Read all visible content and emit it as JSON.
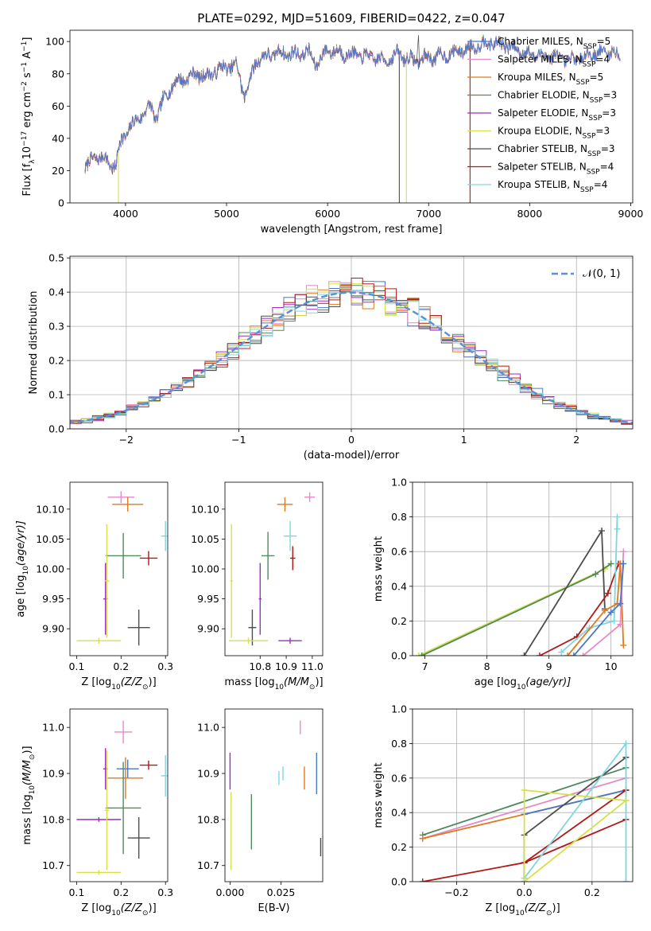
{
  "colors": {
    "chabrier_miles": "#4a78c8",
    "salpeter_miles": "#e58ac8",
    "kroupa_miles": "#e07a1f",
    "chabrier_elodie": "#4f8a5e",
    "salpeter_elodie": "#9b2fc0",
    "kroupa_elodie": "#d7e04a",
    "chabrier_stelib": "#4d4d4d",
    "salpeter_stelib": "#b11818",
    "kroupa_stelib": "#7fd6de",
    "gaussian": "#5b8fd8",
    "grid": "#b0b0b0"
  },
  "chart_data": [
    {
      "id": "spectrum",
      "type": "line",
      "title": "PLATE=0292, MJD=51609, FIBERID=0422, z=0.047",
      "xlabel": "wavelength [Angstrom, rest frame]",
      "ylabel": "Flux [f$_\\lambda$10$^{-17}$ erg cm$^{-2}$ s$^{-1}$ A$^{-1}$]",
      "ylabel_parts": [
        "Flux [f",
        "λ",
        "10",
        "−17",
        " erg cm",
        "−2",
        " s",
        "−1",
        " A",
        "−1",
        "]"
      ],
      "xlim": [
        3450,
        9020
      ],
      "ylim": [
        0,
        107
      ],
      "xticks": [
        4000,
        5000,
        6000,
        7000,
        8000,
        9000
      ],
      "yticks": [
        0,
        20,
        40,
        60,
        80,
        100
      ],
      "grid": false,
      "legend_position": "top-right",
      "legend": [
        {
          "label": "Chabrier MILES, N",
          "sub": "SSP",
          "n": "=5",
          "color_key": "chabrier_miles"
        },
        {
          "label": "Salpeter MILES, N",
          "sub": "SSP",
          "n": "=4",
          "color_key": "salpeter_miles"
        },
        {
          "label": "Kroupa MILES, N",
          "sub": "SSP",
          "n": "=5",
          "color_key": "kroupa_miles"
        },
        {
          "label": "Chabrier ELODIE, N",
          "sub": "SSP",
          "n": "=3",
          "color_key": "chabrier_elodie"
        },
        {
          "label": "Salpeter ELODIE, N",
          "sub": "SSP",
          "n": "=3",
          "color_key": "salpeter_elodie"
        },
        {
          "label": "Kroupa ELODIE, N",
          "sub": "SSP",
          "n": "=3",
          "color_key": "kroupa_elodie"
        },
        {
          "label": "Chabrier STELIB, N",
          "sub": "SSP",
          "n": "=3",
          "color_key": "chabrier_stelib"
        },
        {
          "label": "Salpeter STELIB, N",
          "sub": "SSP",
          "n": "=4",
          "color_key": "salpeter_stelib"
        },
        {
          "label": "Kroupa STELIB, N",
          "sub": "SSP",
          "n": "=4",
          "color_key": "kroupa_stelib"
        }
      ],
      "continuum": [
        [
          3600,
          22
        ],
        [
          3700,
          29
        ],
        [
          3800,
          27
        ],
        [
          3900,
          22
        ],
        [
          3950,
          38
        ],
        [
          4050,
          47
        ],
        [
          4150,
          54
        ],
        [
          4250,
          60
        ],
        [
          4300,
          52
        ],
        [
          4400,
          67
        ],
        [
          4500,
          75
        ],
        [
          4600,
          77
        ],
        [
          4700,
          80
        ],
        [
          4800,
          78
        ],
        [
          4900,
          82
        ],
        [
          5000,
          84
        ],
        [
          5100,
          85
        ],
        [
          5180,
          66
        ],
        [
          5300,
          89
        ],
        [
          5500,
          93
        ],
        [
          5700,
          92
        ],
        [
          5800,
          94
        ],
        [
          5890,
          86
        ],
        [
          6000,
          95
        ],
        [
          6200,
          92
        ],
        [
          6400,
          91
        ],
        [
          6560,
          88
        ],
        [
          6700,
          92
        ],
        [
          6850,
          88
        ],
        [
          7000,
          90
        ],
        [
          7200,
          92
        ],
        [
          7400,
          96
        ],
        [
          7600,
          100
        ],
        [
          7800,
          97
        ],
        [
          8000,
          92
        ],
        [
          8200,
          91
        ],
        [
          8400,
          88
        ],
        [
          8600,
          92
        ],
        [
          8800,
          94
        ],
        [
          8900,
          90
        ]
      ],
      "dropouts": [
        {
          "color_key": "kroupa_elodie",
          "x": 3930,
          "to": 0
        },
        {
          "color_key": "chabrier_stelib",
          "x": 6710,
          "to": 0
        },
        {
          "color_key": "kroupa_elodie",
          "x": 6780,
          "to": 0
        },
        {
          "color_key": "salpeter_stelib",
          "x": 7410,
          "to": 0
        }
      ]
    },
    {
      "id": "residual-histogram",
      "type": "histogram",
      "xlabel": "(data-model)/error",
      "ylabel": "Normed distribution",
      "xlim": [
        -2.5,
        2.5
      ],
      "ylim": [
        0,
        0.505
      ],
      "xticks": [
        -2,
        -1,
        0,
        1,
        2
      ],
      "yticks": [
        0.0,
        0.1,
        0.2,
        0.3,
        0.4,
        0.5
      ],
      "grid": true,
      "legend_position": "top-right",
      "legend_label": "𝒩(0, 1)",
      "bin_width": 0.1,
      "bin_start": -2.6
    },
    {
      "id": "age-vs-Z",
      "type": "scatter",
      "xlabel": "Z [log",
      "xlabel_sub": "10",
      "xlabel_tail": "(Z/Z",
      "xlabel_end": ")]",
      "ylabel": "age  [log",
      "ylabel_sub": "10",
      "ylabel_tail": "(age/yr)]",
      "xlim": [
        0.085,
        0.305
      ],
      "ylim": [
        9.855,
        10.145
      ],
      "xticks": [
        0.1,
        0.2,
        0.3
      ],
      "yticks": [
        9.9,
        9.95,
        10.0,
        10.05,
        10.1
      ],
      "points": [
        {
          "color_key": "salpeter_miles",
          "x": 0.2,
          "y": 10.12,
          "xerr": 0.03,
          "yerr": 0.01
        },
        {
          "color_key": "kroupa_miles",
          "x": 0.215,
          "y": 10.108,
          "xerr": 0.035,
          "yerr": 0.012
        },
        {
          "color_key": "kroupa_stelib",
          "x": 0.3,
          "y": 10.055,
          "xerr": 0.01,
          "yerr": 0.025
        },
        {
          "color_key": "chabrier_elodie",
          "x": 0.205,
          "y": 10.022,
          "xerr": 0.04,
          "yerr": 0.038
        },
        {
          "color_key": "salpeter_stelib",
          "x": 0.262,
          "y": 10.018,
          "xerr": 0.02,
          "yerr": 0.012
        },
        {
          "color_key": "salpeter_elodie",
          "x": 0.165,
          "y": 9.95,
          "xerr": 0.005,
          "yerr": 0.06
        },
        {
          "color_key": "kroupa_elodie",
          "x": 0.168,
          "y": 9.98,
          "xerr": 0.005,
          "yerr": 0.095
        },
        {
          "color_key": "chabrier_stelib",
          "x": 0.24,
          "y": 9.902,
          "xerr": 0.025,
          "yerr": 0.03
        },
        {
          "color_key": "kroupa_elodie",
          "x": 0.15,
          "y": 9.88,
          "xerr": 0.05,
          "yerr": 0.005
        }
      ]
    },
    {
      "id": "age-vs-mass",
      "type": "scatter",
      "xlabel": "mass [log",
      "xlabel_sub": "10",
      "xlabel_tail": "(M/M",
      "xlabel_end": ")]",
      "xlim": [
        10.665,
        11.04
      ],
      "ylim": [
        9.855,
        10.145
      ],
      "xticks": [
        10.8,
        10.9,
        11.0
      ],
      "yticks": [
        9.9,
        9.95,
        10.0,
        10.05,
        10.1
      ],
      "points": [
        {
          "color_key": "salpeter_miles",
          "x": 10.99,
          "y": 10.12,
          "xerr": 0.02,
          "yerr": 0.008
        },
        {
          "color_key": "kroupa_miles",
          "x": 10.895,
          "y": 10.108,
          "xerr": 0.03,
          "yerr": 0.012
        },
        {
          "color_key": "kroupa_stelib",
          "x": 10.915,
          "y": 10.055,
          "xerr": 0.025,
          "yerr": 0.025
        },
        {
          "color_key": "chabrier_elodie",
          "x": 10.83,
          "y": 10.022,
          "xerr": 0.025,
          "yerr": 0.04
        },
        {
          "color_key": "salpeter_stelib",
          "x": 10.925,
          "y": 10.018,
          "xerr": 0.01,
          "yerr": 0.02
        },
        {
          "color_key": "salpeter_elodie",
          "x": 10.8,
          "y": 9.95,
          "xerr": 0.005,
          "yerr": 0.06
        },
        {
          "color_key": "kroupa_elodie",
          "x": 10.69,
          "y": 9.98,
          "xerr": 0.005,
          "yerr": 0.095
        },
        {
          "color_key": "chabrier_stelib",
          "x": 10.77,
          "y": 9.902,
          "xerr": 0.015,
          "yerr": 0.03
        },
        {
          "color_key": "salpeter_elodie",
          "x": 10.915,
          "y": 9.88,
          "xerr": 0.045,
          "yerr": 0.005
        },
        {
          "color_key": "kroupa_elodie",
          "x": 10.755,
          "y": 9.88,
          "xerr": 0.075,
          "yerr": 0.005
        }
      ]
    },
    {
      "id": "weight-vs-age",
      "type": "line",
      "xlabel": "age  [log",
      "xlabel_sub": "10",
      "xlabel_tail": "(age/yr)]",
      "ylabel": "mass weight",
      "xlim": [
        6.8,
        10.35
      ],
      "ylim": [
        0,
        1.0
      ],
      "xticks": [
        7,
        8,
        9,
        10
      ],
      "yticks": [
        0.0,
        0.2,
        0.4,
        0.6,
        0.8,
        1.0
      ],
      "grid": true,
      "series": [
        {
          "color_key": "kroupa_elodie",
          "x": [
            6.9,
            9.9,
            10.0
          ],
          "y": [
            0.0,
            0.5,
            0.53
          ]
        },
        {
          "color_key": "chabrier_elodie",
          "x": [
            6.95,
            9.75,
            10.0
          ],
          "y": [
            0.0,
            0.47,
            0.53
          ]
        },
        {
          "color_key": "chabrier_stelib",
          "x": [
            8.6,
            9.85,
            9.9
          ],
          "y": [
            0.0,
            0.72,
            0.27
          ]
        },
        {
          "color_key": "salpeter_stelib",
          "x": [
            8.85,
            9.45,
            9.95,
            10.12,
            10.15
          ],
          "y": [
            0.0,
            0.11,
            0.36,
            0.53,
            0.53
          ]
        },
        {
          "color_key": "kroupa_stelib",
          "x": [
            9.2,
            9.65,
            10.05,
            10.1,
            10.1
          ],
          "y": [
            0.02,
            0.16,
            0.2,
            0.8,
            0.73
          ]
        },
        {
          "color_key": "kroupa_miles",
          "x": [
            9.3,
            9.9,
            10.1,
            10.15,
            10.2
          ],
          "y": [
            0.0,
            0.26,
            0.3,
            0.53,
            0.06
          ]
        },
        {
          "color_key": "salpeter_miles",
          "x": [
            9.55,
            10.15,
            10.2
          ],
          "y": [
            0.0,
            0.18,
            0.6
          ]
        },
        {
          "color_key": "chabrier_miles",
          "x": [
            9.4,
            10.0,
            10.15,
            10.2
          ],
          "y": [
            0.0,
            0.25,
            0.3,
            0.53
          ]
        }
      ]
    },
    {
      "id": "mass-vs-Z",
      "type": "scatter",
      "xlabel": "Z [log",
      "xlabel_sub": "10",
      "xlabel_tail": "(Z/Z",
      "xlabel_end": ")]",
      "ylabel": "mass [log",
      "ylabel_sub": "10",
      "ylabel_tail": "(M/M",
      "ylabel_end": ")]",
      "xlim": [
        0.085,
        0.305
      ],
      "ylim": [
        10.665,
        11.04
      ],
      "xticks": [
        0.1,
        0.2,
        0.3
      ],
      "yticks": [
        10.7,
        10.8,
        10.9,
        11.0
      ],
      "points": [
        {
          "color_key": "salpeter_miles",
          "x": 0.205,
          "y": 10.99,
          "xerr": 0.02,
          "yerr": 0.025
        },
        {
          "color_key": "salpeter_stelib",
          "x": 0.262,
          "y": 10.918,
          "xerr": 0.02,
          "yerr": 0.01
        },
        {
          "color_key": "chabrier_miles",
          "x": 0.215,
          "y": 10.91,
          "xerr": 0.025,
          "yerr": 0.02
        },
        {
          "color_key": "kroupa_stelib",
          "x": 0.3,
          "y": 10.895,
          "xerr": 0.01,
          "yerr": 0.045
        },
        {
          "color_key": "kroupa_miles",
          "x": 0.21,
          "y": 10.89,
          "xerr": 0.04,
          "yerr": 0.045
        },
        {
          "color_key": "salpeter_elodie",
          "x": 0.165,
          "y": 10.91,
          "xerr": 0.005,
          "yerr": 0.045
        },
        {
          "color_key": "chabrier_elodie",
          "x": 0.205,
          "y": 10.825,
          "xerr": 0.04,
          "yerr": 0.1
        },
        {
          "color_key": "salpeter_elodie",
          "x": 0.15,
          "y": 10.8,
          "xerr": 0.05,
          "yerr": 0.005
        },
        {
          "color_key": "chabrier_stelib",
          "x": 0.24,
          "y": 10.76,
          "xerr": 0.025,
          "yerr": 0.045
        },
        {
          "color_key": "kroupa_elodie",
          "x": 0.168,
          "y": 10.82,
          "xerr": 0.005,
          "yerr": 0.13
        },
        {
          "color_key": "kroupa_elodie",
          "x": 0.15,
          "y": 10.685,
          "xerr": 0.05,
          "yerr": 0.005
        }
      ]
    },
    {
      "id": "mass-vs-EBV",
      "type": "scatter",
      "xlabel": "E(B-V)",
      "xlim": [
        -0.0025,
        0.0455
      ],
      "ylim": [
        10.665,
        11.04
      ],
      "xticks": [
        0.0,
        0.025
      ],
      "xtick_labels": [
        "0.000",
        "0.025"
      ],
      "yticks": [
        10.7,
        10.8,
        10.9,
        11.0
      ],
      "points": [
        {
          "color_key": "salpeter_miles",
          "x": 0.0345,
          "y": 11.0,
          "xerr": 0,
          "yerr": 0.015
        },
        {
          "color_key": "kroupa_stelib",
          "x": 0.026,
          "y": 10.9,
          "xerr": 0,
          "yerr": 0.015
        },
        {
          "color_key": "kroupa_stelib",
          "x": 0.024,
          "y": 10.89,
          "xerr": 0,
          "yerr": 0.015
        },
        {
          "color_key": "kroupa_miles",
          "x": 0.0365,
          "y": 10.89,
          "xerr": 0,
          "yerr": 0.025
        },
        {
          "color_key": "chabrier_miles",
          "x": 0.0425,
          "y": 10.9,
          "xerr": 0,
          "yerr": 0.045
        },
        {
          "color_key": "salpeter_elodie",
          "x": 0.0,
          "y": 10.905,
          "xerr": 0,
          "yerr": 0.04
        },
        {
          "color_key": "chabrier_elodie",
          "x": 0.0105,
          "y": 10.795,
          "xerr": 0,
          "yerr": 0.06
        },
        {
          "color_key": "kroupa_elodie",
          "x": 0.0005,
          "y": 10.775,
          "xerr": 0,
          "yerr": 0.085
        },
        {
          "color_key": "chabrier_stelib",
          "x": 0.0445,
          "y": 10.74,
          "xerr": 0,
          "yerr": 0.02
        }
      ]
    },
    {
      "id": "weight-vs-Z",
      "type": "line",
      "xlabel": "Z [log",
      "xlabel_sub": "10",
      "xlabel_tail": "(Z/Z",
      "xlabel_end": ")]",
      "ylabel": "mass weight",
      "xlim": [
        -0.33,
        0.32
      ],
      "ylim": [
        0,
        1.0
      ],
      "xticks": [
        -0.2,
        0.0,
        0.2
      ],
      "yticks": [
        0.0,
        0.2,
        0.4,
        0.6,
        0.8,
        1.0
      ],
      "grid": true,
      "series": [
        {
          "color_key": "chabrier_elodie",
          "x": [
            -0.3,
            0.3
          ],
          "y": [
            0.27,
            0.66
          ]
        },
        {
          "color_key": "salpeter_miles",
          "x": [
            -0.3,
            0.3
          ],
          "y": [
            0.25,
            0.6
          ]
        },
        {
          "color_key": "kroupa_miles",
          "x": [
            -0.3,
            0.3
          ],
          "y": [
            0.25,
            0.53
          ]
        },
        {
          "color_key": "chabrier_miles",
          "x": [
            0.0,
            0.3
          ],
          "y": [
            0.39,
            0.53
          ]
        },
        {
          "color_key": "salpeter_stelib",
          "x": [
            -0.3,
            0.0,
            0.3
          ],
          "y": [
            0.0,
            0.11,
            0.36
          ]
        },
        {
          "color_key": "salpeter_stelib",
          "x": [
            0.0,
            0.3
          ],
          "y": [
            0.11,
            0.53
          ]
        },
        {
          "color_key": "chabrier_stelib",
          "x": [
            0.0,
            0.0,
            0.3
          ],
          "y": [
            0.0,
            0.27,
            0.72
          ]
        },
        {
          "color_key": "kroupa_stelib",
          "x": [
            0.0,
            0.3,
            0.3
          ],
          "y": [
            0.02,
            0.8,
            0.0
          ]
        },
        {
          "color_key": "kroupa_elodie",
          "x": [
            0.0,
            0.0,
            0.3
          ],
          "y": [
            0.0,
            0.53,
            0.47
          ]
        },
        {
          "color_key": "kroupa_elodie",
          "x": [
            0.0,
            0.3
          ],
          "y": [
            0.0,
            0.47
          ]
        }
      ]
    }
  ]
}
